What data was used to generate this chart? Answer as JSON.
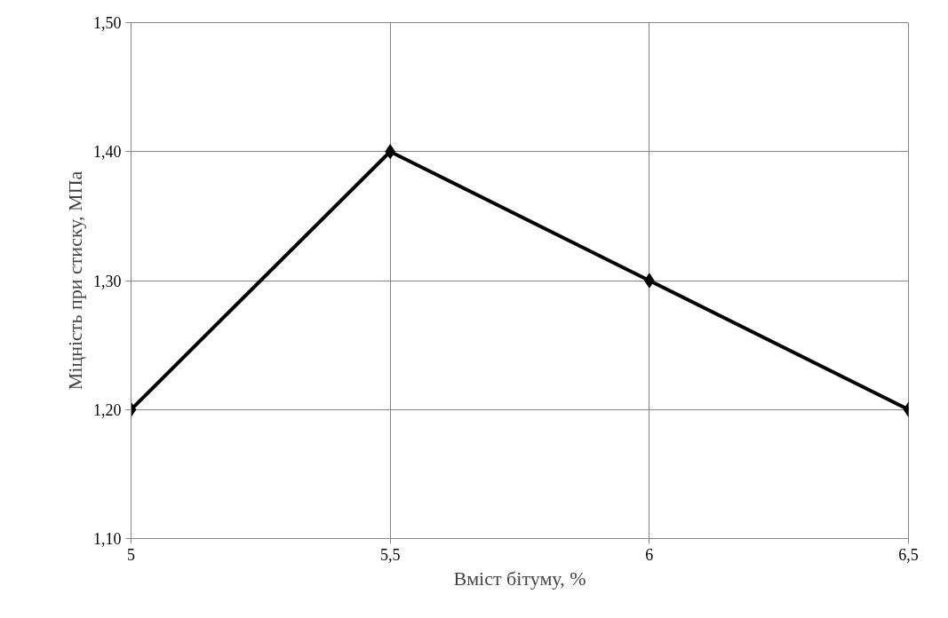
{
  "chart_data": {
    "type": "line",
    "xlabel": "Вміст бітуму, %",
    "ylabel": "Міцність при стиску, МПа",
    "x": [
      5,
      5.5,
      6,
      6.5
    ],
    "series": [
      {
        "color": "#000000",
        "values": [
          1.2,
          1.4,
          1.3,
          1.2
        ]
      }
    ],
    "xlim": [
      5,
      6.5
    ],
    "xticks": [
      5,
      {
        "value": 5.5,
        "label": "5,5"
      },
      6,
      {
        "value": 6.5,
        "label": "6,5"
      }
    ],
    "ylim": [
      1.1,
      1.5
    ],
    "yticks": [
      {
        "value": 1.1,
        "label": "1,10"
      },
      {
        "value": 1.2,
        "label": "1,20"
      },
      {
        "value": 1.3,
        "label": "1,30"
      },
      {
        "value": 1.4,
        "label": "1,40"
      },
      {
        "value": 1.5,
        "label": "1,50"
      }
    ],
    "grid": true,
    "marker": "diamond",
    "line_style": "solid"
  }
}
